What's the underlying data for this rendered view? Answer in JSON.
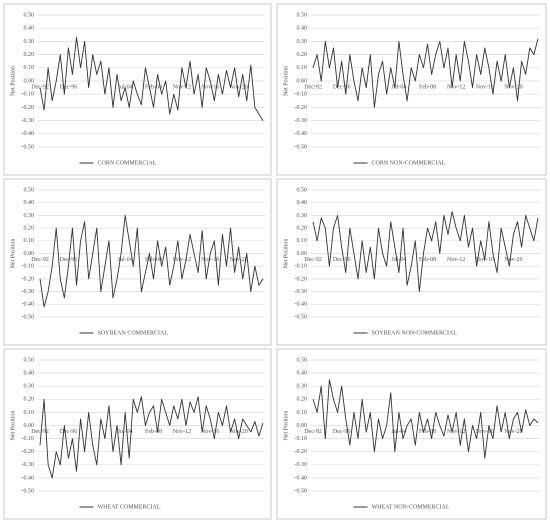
{
  "chart_data": [
    {
      "type": "line",
      "ylabel": "Net Position",
      "categories": [
        "Dec-92",
        null,
        null,
        null,
        null,
        null,
        null,
        "Dec-96",
        null,
        null,
        null,
        null,
        null,
        null,
        null,
        null,
        null,
        null,
        null,
        null,
        null,
        "Jul-04",
        null,
        null,
        null,
        null,
        null,
        null,
        "Feb-08",
        null,
        null,
        null,
        null,
        null,
        null,
        "Nov-12",
        null,
        null,
        null,
        null,
        null,
        null,
        "Nov-16",
        null,
        null,
        null,
        null,
        null,
        null,
        "Nov-20",
        null,
        null,
        null,
        null,
        null,
        null
      ],
      "series": [
        {
          "name": "CORN COMMERCIAL",
          "color": "#333333",
          "values": [
            -0.05,
            -0.22,
            0.1,
            -0.15,
            0.0,
            0.2,
            -0.1,
            0.25,
            0.05,
            0.33,
            0.1,
            0.3,
            -0.05,
            0.2,
            0.05,
            0.15,
            -0.1,
            0.1,
            -0.2,
            0.05,
            -0.15,
            -0.05,
            -0.2,
            0.0,
            -0.1,
            -0.18,
            0.1,
            -0.05,
            -0.2,
            0.05,
            -0.1,
            0.0,
            -0.25,
            -0.1,
            -0.22,
            0.1,
            -0.05,
            0.15,
            -0.1,
            0.05,
            -0.2,
            0.1,
            0.0,
            -0.15,
            0.05,
            -0.1,
            0.08,
            -0.05,
            0.1,
            -0.12,
            0.05,
            -0.15,
            0.12,
            -0.2,
            -0.25,
            -0.3
          ]
        }
      ],
      "ylim": [
        -0.5,
        0.5
      ],
      "yticks": [
        {
          "value": 0.5,
          "label": "0.50"
        },
        {
          "value": 0.4,
          "label": "0.40"
        },
        {
          "value": 0.3,
          "label": "0.30"
        },
        {
          "value": 0.2,
          "label": "0.20"
        },
        {
          "value": 0.1,
          "label": "0.10"
        },
        {
          "value": 0,
          "label": "0.00"
        },
        {
          "value": -0.1,
          "label": "-0.10"
        },
        {
          "value": -0.2,
          "label": "-0.20"
        },
        {
          "value": -0.3,
          "label": "-0.30"
        },
        {
          "value": -0.4,
          "label": "-0.40"
        },
        {
          "value": -0.5,
          "label": "-0.50"
        }
      ],
      "grid": true
    },
    {
      "type": "line",
      "ylabel": "Net Position",
      "categories": [
        "Dec-92",
        null,
        null,
        null,
        null,
        null,
        null,
        "Dec-96",
        null,
        null,
        null,
        null,
        null,
        null,
        null,
        null,
        null,
        null,
        null,
        null,
        null,
        "Jul-04",
        null,
        null,
        null,
        null,
        null,
        null,
        "Feb-08",
        null,
        null,
        null,
        null,
        null,
        null,
        "Nov-12",
        null,
        null,
        null,
        null,
        null,
        null,
        "Nov-16",
        null,
        null,
        null,
        null,
        null,
        null,
        "Nov-20",
        null,
        null,
        null,
        null,
        null,
        null
      ],
      "series": [
        {
          "name": "CORN NON-COMMERCIAL",
          "color": "#333333",
          "values": [
            0.1,
            0.2,
            0.0,
            0.3,
            0.1,
            0.25,
            -0.05,
            0.15,
            -0.1,
            0.2,
            0.0,
            -0.15,
            0.1,
            -0.05,
            0.2,
            -0.2,
            0.05,
            0.15,
            -0.1,
            0.1,
            -0.05,
            0.3,
            0.05,
            -0.15,
            0.1,
            0.0,
            0.2,
            0.1,
            0.28,
            0.05,
            0.2,
            0.3,
            0.1,
            0.25,
            -0.05,
            0.2,
            0.0,
            0.3,
            0.15,
            -0.05,
            0.2,
            0.05,
            0.25,
            0.1,
            -0.1,
            0.15,
            0.0,
            0.2,
            -0.05,
            0.1,
            -0.15,
            0.15,
            0.05,
            0.25,
            0.2,
            0.32
          ]
        }
      ],
      "ylim": [
        -0.5,
        0.5
      ],
      "yticks": [
        {
          "value": 0.5,
          "label": "0.50"
        },
        {
          "value": 0.4,
          "label": "0.40"
        },
        {
          "value": 0.3,
          "label": "0.30"
        },
        {
          "value": 0.2,
          "label": "0.20"
        },
        {
          "value": 0.1,
          "label": "0.10"
        },
        {
          "value": 0,
          "label": "0.00"
        },
        {
          "value": -0.1,
          "label": "-0.10"
        },
        {
          "value": -0.2,
          "label": "-0.20"
        },
        {
          "value": -0.3,
          "label": "-0.30"
        },
        {
          "value": -0.4,
          "label": "-0.40"
        },
        {
          "value": -0.5,
          "label": "-0.50"
        }
      ],
      "grid": true
    },
    {
      "type": "line",
      "ylabel": "Net Position",
      "categories": [
        "Dec-92",
        null,
        null,
        null,
        null,
        null,
        null,
        "Dec-96",
        null,
        null,
        null,
        null,
        null,
        null,
        null,
        null,
        null,
        null,
        null,
        null,
        null,
        "Jul-04",
        null,
        null,
        null,
        null,
        null,
        null,
        "Feb-08",
        null,
        null,
        null,
        null,
        null,
        null,
        "Nov-12",
        null,
        null,
        null,
        null,
        null,
        null,
        "Nov-16",
        null,
        null,
        null,
        null,
        null,
        null,
        "Nov-20",
        null,
        null,
        null,
        null,
        null,
        null
      ],
      "series": [
        {
          "name": "SOYBEAN COMMERCIAL",
          "color": "#333333",
          "values": [
            -0.2,
            -0.42,
            -0.3,
            -0.1,
            0.2,
            -0.2,
            -0.35,
            -0.1,
            0.2,
            -0.25,
            0.1,
            0.25,
            -0.2,
            0.0,
            0.2,
            -0.3,
            -0.1,
            0.1,
            -0.35,
            -0.2,
            0.0,
            0.3,
            0.1,
            -0.1,
            0.2,
            -0.3,
            -0.15,
            0.0,
            -0.2,
            0.1,
            -0.1,
            0.05,
            -0.25,
            -0.1,
            0.1,
            -0.2,
            -0.05,
            0.15,
            0.0,
            -0.15,
            0.18,
            -0.2,
            0.0,
            0.1,
            -0.25,
            0.15,
            -0.1,
            0.2,
            -0.15,
            0.05,
            -0.2,
            0.0,
            -0.3,
            -0.1,
            -0.25,
            -0.2
          ]
        }
      ],
      "ylim": [
        -0.5,
        0.5
      ],
      "yticks": [
        {
          "value": 0.5,
          "label": "0.50"
        },
        {
          "value": 0.4,
          "label": "0.40"
        },
        {
          "value": 0.3,
          "label": "0.30"
        },
        {
          "value": 0.2,
          "label": "0.20"
        },
        {
          "value": 0.1,
          "label": "0.10"
        },
        {
          "value": 0,
          "label": "0.00"
        },
        {
          "value": -0.1,
          "label": "-0.10"
        },
        {
          "value": -0.2,
          "label": "-0.20"
        },
        {
          "value": -0.3,
          "label": "-0.30"
        },
        {
          "value": -0.4,
          "label": "-0.40"
        },
        {
          "value": -0.5,
          "label": "-0.50"
        }
      ],
      "grid": true
    },
    {
      "type": "line",
      "ylabel": "Net Position",
      "categories": [
        "Dec-92",
        null,
        null,
        null,
        null,
        null,
        null,
        "Dec-96",
        null,
        null,
        null,
        null,
        null,
        null,
        null,
        null,
        null,
        null,
        null,
        null,
        null,
        "Jul-04",
        null,
        null,
        null,
        null,
        null,
        null,
        "Feb-08",
        null,
        null,
        null,
        null,
        null,
        null,
        "Nov-12",
        null,
        null,
        null,
        null,
        null,
        null,
        "Nov-16",
        null,
        null,
        null,
        null,
        null,
        null,
        "Nov-20",
        null,
        null,
        null,
        null,
        null,
        null
      ],
      "series": [
        {
          "name": "SOYBEAN NON-COMMERCIAL",
          "color": "#333333",
          "values": [
            0.25,
            0.1,
            0.28,
            0.2,
            -0.1,
            0.2,
            0.3,
            0.05,
            -0.15,
            0.2,
            0.0,
            -0.2,
            0.1,
            -0.15,
            0.05,
            -0.2,
            0.2,
            0.0,
            -0.1,
            0.25,
            0.05,
            -0.15,
            0.2,
            -0.25,
            -0.1,
            0.1,
            -0.3,
            0.0,
            0.2,
            0.1,
            0.25,
            0.0,
            0.3,
            0.15,
            0.33,
            0.2,
            0.1,
            0.3,
            0.05,
            0.2,
            -0.1,
            0.1,
            -0.05,
            0.25,
            0.0,
            -0.15,
            0.2,
            0.05,
            -0.1,
            0.15,
            0.25,
            0.05,
            0.3,
            0.2,
            0.1,
            0.28
          ]
        }
      ],
      "ylim": [
        -0.5,
        0.5
      ],
      "yticks": [
        {
          "value": 0.5,
          "label": "0.50"
        },
        {
          "value": 0.4,
          "label": "0.40"
        },
        {
          "value": 0.3,
          "label": "0.30"
        },
        {
          "value": 0.2,
          "label": "0.20"
        },
        {
          "value": 0.1,
          "label": "0.10"
        },
        {
          "value": 0,
          "label": "0.00"
        },
        {
          "value": -0.1,
          "label": "-0.10"
        },
        {
          "value": -0.2,
          "label": "-0.20"
        },
        {
          "value": -0.3,
          "label": "-0.30"
        },
        {
          "value": -0.4,
          "label": "-0.40"
        },
        {
          "value": -0.5,
          "label": "-0.50"
        }
      ],
      "grid": true
    },
    {
      "type": "line",
      "ylabel": "Net Position",
      "categories": [
        "Dec-92",
        null,
        null,
        null,
        null,
        null,
        null,
        "Dec-96",
        null,
        null,
        null,
        null,
        null,
        null,
        null,
        null,
        null,
        null,
        null,
        null,
        null,
        "Jul-04",
        null,
        null,
        null,
        null,
        null,
        null,
        "Feb-08",
        null,
        null,
        null,
        null,
        null,
        null,
        "Nov-12",
        null,
        null,
        null,
        null,
        null,
        null,
        "Nov-16",
        null,
        null,
        null,
        null,
        null,
        null,
        "Nov-20",
        null,
        null,
        null,
        null,
        null,
        null
      ],
      "series": [
        {
          "name": "WHEAT COMMERCIAL",
          "color": "#333333",
          "values": [
            -0.15,
            0.2,
            -0.3,
            -0.4,
            -0.2,
            -0.3,
            0.0,
            -0.25,
            -0.1,
            -0.35,
            0.05,
            -0.2,
            0.1,
            -0.15,
            -0.3,
            0.05,
            -0.1,
            0.15,
            -0.2,
            0.0,
            -0.3,
            0.1,
            -0.25,
            0.2,
            0.1,
            0.22,
            0.0,
            0.1,
            0.15,
            -0.05,
            0.2,
            0.1,
            0.0,
            0.15,
            0.05,
            0.2,
            0.0,
            0.18,
            0.1,
            0.22,
            -0.05,
            0.15,
            0.05,
            -0.1,
            0.1,
            0.0,
            0.15,
            -0.05,
            0.05,
            -0.1,
            0.05,
            0.0,
            -0.05,
            0.03,
            -0.08,
            0.02
          ]
        }
      ],
      "ylim": [
        -0.5,
        0.5
      ],
      "yticks": [
        {
          "value": 0.5,
          "label": "0.50"
        },
        {
          "value": 0.4,
          "label": "0.40"
        },
        {
          "value": 0.3,
          "label": "0.30"
        },
        {
          "value": 0.2,
          "label": "0.20"
        },
        {
          "value": 0.1,
          "label": "0.10"
        },
        {
          "value": 0,
          "label": "0.00"
        },
        {
          "value": -0.1,
          "label": "-0.10"
        },
        {
          "value": -0.2,
          "label": "-0.20"
        },
        {
          "value": -0.3,
          "label": "-0.30"
        },
        {
          "value": -0.4,
          "label": "-0.40"
        },
        {
          "value": -0.5,
          "label": "-0.50"
        }
      ],
      "grid": true
    },
    {
      "type": "line",
      "ylabel": "Net Position",
      "categories": [
        "Dec-92",
        null,
        null,
        null,
        null,
        null,
        null,
        "Dec-96",
        null,
        null,
        null,
        null,
        null,
        null,
        null,
        null,
        null,
        null,
        null,
        null,
        null,
        "Jul-04",
        null,
        null,
        null,
        null,
        null,
        null,
        "Feb-08",
        null,
        null,
        null,
        null,
        null,
        null,
        "Nov-12",
        null,
        null,
        null,
        null,
        null,
        null,
        "Nov-16",
        null,
        null,
        null,
        null,
        null,
        null,
        "Nov-20",
        null,
        null,
        null,
        null,
        null,
        null
      ],
      "series": [
        {
          "name": "WHEAT NON-COMMERCIAL",
          "color": "#333333",
          "values": [
            0.2,
            0.1,
            0.3,
            -0.1,
            0.35,
            0.2,
            0.1,
            0.3,
            0.05,
            -0.15,
            0.1,
            -0.1,
            0.2,
            -0.05,
            0.1,
            -0.2,
            0.05,
            -0.1,
            0.0,
            0.25,
            -0.2,
            0.1,
            -0.1,
            0.0,
            0.05,
            -0.15,
            0.1,
            -0.05,
            0.05,
            -0.1,
            0.1,
            0.0,
            -0.08,
            0.08,
            -0.05,
            0.1,
            -0.15,
            0.05,
            -0.2,
            0.0,
            -0.1,
            0.1,
            -0.25,
            0.0,
            -0.1,
            0.15,
            -0.05,
            0.1,
            -0.1,
            0.05,
            0.1,
            -0.05,
            0.12,
            0.0,
            0.05,
            0.02
          ]
        }
      ],
      "ylim": [
        -0.5,
        0.5
      ],
      "yticks": [
        {
          "value": 0.5,
          "label": "0.50"
        },
        {
          "value": 0.4,
          "label": "0.40"
        },
        {
          "value": 0.3,
          "label": "0.30"
        },
        {
          "value": 0.2,
          "label": "0.20"
        },
        {
          "value": 0.1,
          "label": "0.10"
        },
        {
          "value": 0,
          "label": "0.00"
        },
        {
          "value": -0.1,
          "label": "-0.10"
        },
        {
          "value": -0.2,
          "label": "-0.20"
        },
        {
          "value": -0.3,
          "label": "-0.30"
        },
        {
          "value": -0.4,
          "label": "-0.40"
        },
        {
          "value": -0.5,
          "label": "-0.50"
        }
      ],
      "grid": true
    }
  ]
}
